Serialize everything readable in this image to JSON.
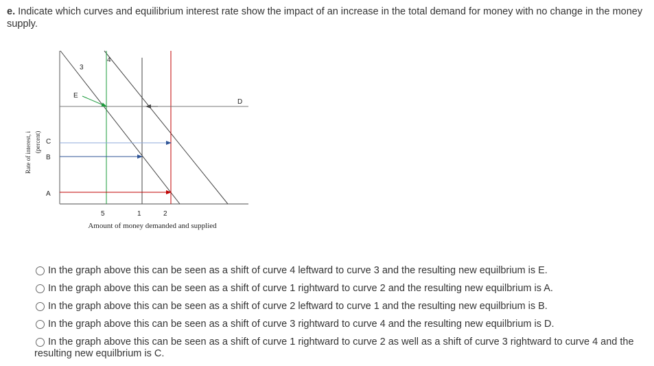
{
  "question": {
    "label": "e.",
    "text": "Indicate which curves and equilibrium interest rate show the impact of an increase in the total demand for money with no change in the money supply."
  },
  "diagram": {
    "curve_labels": [
      "3",
      "4"
    ],
    "point_labels": [
      "E",
      "D",
      "C",
      "B",
      "A"
    ],
    "quantity_labels": [
      "5",
      "1",
      "2"
    ],
    "x_axis_label": "Amount of money demanded and supplied",
    "y_axis_label": [
      "Rate of interest, i",
      "(percent)"
    ]
  },
  "options": [
    "In the graph above this can be seen as a shift of curve 4 leftward to curve 3 and the resulting new equilbrium is E.",
    "In the graph above this can be seen as a shift of curve 1 rightward to curve 2 and the resulting new equilbrium is A.",
    "In the graph above this can be seen as a shift of curve 2 leftward to curve 1 and the resulting new equilbrium is B.",
    "In the graph above this can be seen as a shift of curve 3 rightward to curve 4 and the resulting new equilbrium is D.",
    "In the graph above this can be seen as a shift of curve 1 rightward to curve 2 as well as a shift of curve 3 rightward to curve 4 and the resulting new equilbrium is C."
  ]
}
